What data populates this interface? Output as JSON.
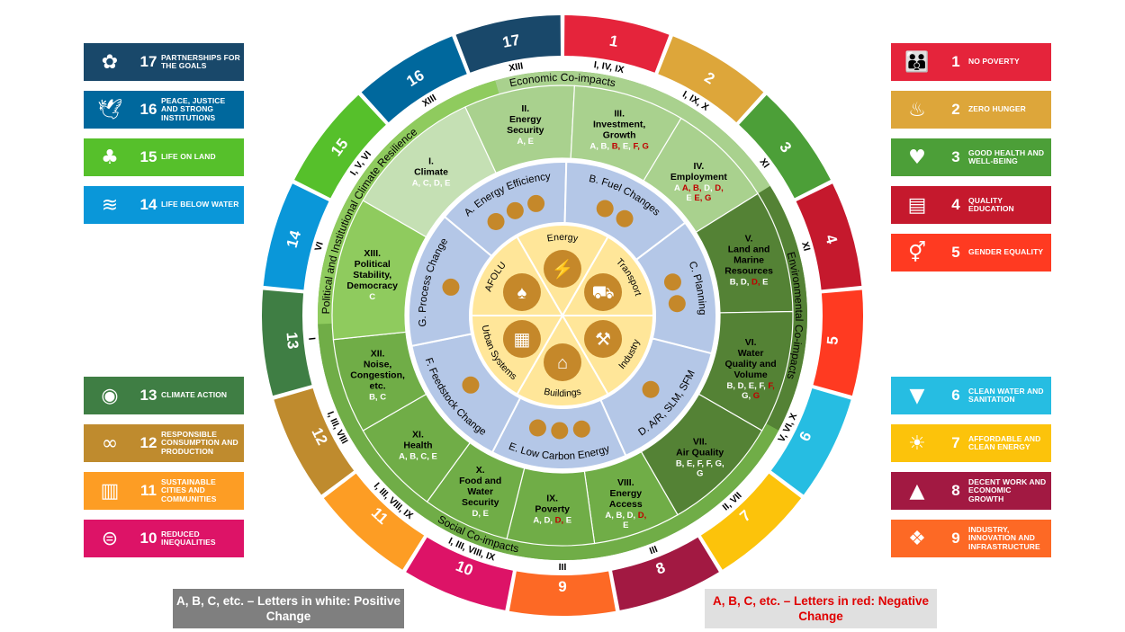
{
  "colors": {
    "sdg": {
      "1": "#E5243B",
      "2": "#DDA63A",
      "3": "#4C9F38",
      "4": "#C5192D",
      "5": "#FF3A21",
      "6": "#26BDE2",
      "7": "#FCC30B",
      "8": "#A21942",
      "9": "#FD6925",
      "10": "#DD1367",
      "11": "#FD9D24",
      "12": "#BF8B2E",
      "13": "#3F7E44",
      "14": "#0A97D9",
      "15": "#56C02B",
      "16": "#00689D",
      "17": "#19486A"
    },
    "economic": "#a9d18e",
    "environmental": "#548235",
    "social": "#70ad47",
    "political": "#8fcb5e",
    "sector_ring": "#b4c7e7",
    "core": "#ffe699",
    "icon_gold": "#c5882a",
    "negative": "#c00000"
  },
  "left_tiles": [
    {
      "number": "17",
      "label": "Partnerships for the goals",
      "icon": "rings-icon"
    },
    {
      "number": "16",
      "label": "Peace, justice and strong institutions",
      "icon": "dove-gavel-icon"
    },
    {
      "number": "15",
      "label": "Life on land",
      "icon": "tree-bird-icon"
    },
    {
      "number": "14",
      "label": "Life below water",
      "icon": "fish-wave-icon"
    },
    {
      "number": "13",
      "label": "Climate action",
      "icon": "eye-globe-icon"
    },
    {
      "number": "12",
      "label": "Responsible consumption and production",
      "icon": "infinity-icon"
    },
    {
      "number": "11",
      "label": "Sustainable cities and communities",
      "icon": "city-icon"
    },
    {
      "number": "10",
      "label": "Reduced inequalities",
      "icon": "equals-circle-icon"
    }
  ],
  "right_tiles": [
    {
      "number": "1",
      "label": "No poverty",
      "icon": "family-icon"
    },
    {
      "number": "2",
      "label": "Zero hunger",
      "icon": "bowl-icon"
    },
    {
      "number": "3",
      "label": "Good health and well-being",
      "icon": "heartbeat-icon"
    },
    {
      "number": "4",
      "label": "Quality education",
      "icon": "book-icon"
    },
    {
      "number": "5",
      "label": "Gender equality",
      "icon": "gender-icon"
    },
    {
      "number": "6",
      "label": "Clean water and sanitation",
      "icon": "water-drop-icon"
    },
    {
      "number": "7",
      "label": "Affordable and clean energy",
      "icon": "sun-power-icon"
    },
    {
      "number": "8",
      "label": "Decent work and economic growth",
      "icon": "growth-chart-icon"
    },
    {
      "number": "9",
      "label": "Industry, innovation and infrastructure",
      "icon": "cubes-icon"
    }
  ],
  "outer_ring": [
    {
      "sdg": "1",
      "roman": "I, IV, IX"
    },
    {
      "sdg": "2",
      "roman": "I, IX, X"
    },
    {
      "sdg": "3",
      "roman": "XI"
    },
    {
      "sdg": "4",
      "roman": "XI"
    },
    {
      "sdg": "5",
      "roman": ""
    },
    {
      "sdg": "6",
      "roman": "V, VI, X"
    },
    {
      "sdg": "7",
      "roman": "II, VII"
    },
    {
      "sdg": "8",
      "roman": "III"
    },
    {
      "sdg": "9",
      "roman": "III"
    },
    {
      "sdg": "10",
      "roman": "I, III, VIII, IX"
    },
    {
      "sdg": "11",
      "roman": "I, III, VIII, IX"
    },
    {
      "sdg": "12",
      "roman": "I, III, VIII"
    },
    {
      "sdg": "13",
      "roman": "I"
    },
    {
      "sdg": "14",
      "roman": "VI"
    },
    {
      "sdg": "15",
      "roman": "I, V, VI"
    },
    {
      "sdg": "16",
      "roman": "XIII"
    },
    {
      "sdg": "17",
      "roman": "XIII"
    }
  ],
  "band_labels": {
    "economic": "Economic Co-impacts",
    "environmental": "Environmental Co-impacts",
    "social": "Social Co-impacts",
    "political": "Political and Institutional Climate Resilience"
  },
  "co_impacts": [
    {
      "group": "economic",
      "roman": "II.",
      "title": [
        "Energy",
        "Security"
      ],
      "letters": [
        {
          "t": "A, E",
          "neg": false
        }
      ]
    },
    {
      "group": "economic",
      "roman": "III.",
      "title": [
        "Investment,",
        "Growth"
      ],
      "letters": [
        {
          "t": "A, B,",
          "neg": false
        },
        {
          "t": "B,",
          "neg": true
        },
        {
          "t": "E,",
          "neg": false
        },
        {
          "t": "F, G",
          "neg": true
        }
      ]
    },
    {
      "group": "economic",
      "roman": "IV.",
      "title": [
        "Employment"
      ],
      "letters": [
        {
          "t": "A",
          "neg": false
        },
        {
          "t": "A, B,",
          "neg": true
        },
        {
          "t": "D,",
          "neg": false
        },
        {
          "t": "D,",
          "neg": true
        },
        {
          "t": "|E",
          "neg": false
        },
        {
          "t": "E, G",
          "neg": true
        }
      ]
    },
    {
      "group": "environmental",
      "roman": "V.",
      "title": [
        "Land and",
        "Marine",
        "Resources"
      ],
      "letters": [
        {
          "t": "B, D,",
          "neg": false
        },
        {
          "t": "D,",
          "neg": true
        },
        {
          "t": "E",
          "neg": false
        }
      ]
    },
    {
      "group": "environmental",
      "roman": "VI.",
      "title": [
        "Water",
        "Quality and",
        "Volume"
      ],
      "letters": [
        {
          "t": "B, D, E, F,",
          "neg": false
        },
        {
          "t": "F,",
          "neg": true
        },
        {
          "t": "|G,",
          "neg": false
        },
        {
          "t": "G",
          "neg": true
        }
      ]
    },
    {
      "group": "environmental",
      "roman": "VII.",
      "title": [
        "Air Quality"
      ],
      "letters": [
        {
          "t": "B, E, F, F, G,",
          "neg": false
        },
        {
          "t": "|G",
          "neg": false
        }
      ]
    },
    {
      "group": "social",
      "roman": "VIII.",
      "title": [
        "Energy",
        "Access"
      ],
      "letters": [
        {
          "t": "A, B, D,",
          "neg": false
        },
        {
          "t": "D,",
          "neg": true
        },
        {
          "t": "|E",
          "neg": false
        }
      ]
    },
    {
      "group": "social",
      "roman": "IX.",
      "title": [
        "Poverty"
      ],
      "letters": [
        {
          "t": "A, D,",
          "neg": false
        },
        {
          "t": "D,",
          "neg": true
        },
        {
          "t": "E",
          "neg": false
        }
      ]
    },
    {
      "group": "social",
      "roman": "X.",
      "title": [
        "Food and",
        "Water",
        "Security"
      ],
      "letters": [
        {
          "t": "D, E",
          "neg": false
        }
      ]
    },
    {
      "group": "social",
      "roman": "XI.",
      "title": [
        "Health"
      ],
      "letters": [
        {
          "t": "A, B, C, E",
          "neg": false
        }
      ]
    },
    {
      "group": "social",
      "roman": "XII.",
      "title": [
        "Noise,",
        "Congestion,",
        "etc."
      ],
      "letters": [
        {
          "t": "B, C",
          "neg": false
        }
      ]
    },
    {
      "group": "political",
      "roman": "XIII.",
      "title": [
        "Political",
        "Stability,",
        "Democracy"
      ],
      "letters": [
        {
          "t": "C",
          "neg": false
        }
      ]
    },
    {
      "group": "political_light",
      "roman": "I.",
      "title": [
        "Climate"
      ],
      "letters": [
        {
          "t": "A, C, D, E",
          "neg": false
        }
      ]
    }
  ],
  "measures": [
    "A. Energy Efficiency",
    "B. Fuel Changes",
    "C. Planning",
    "D. A/R, SLM, SFM",
    "E. Low Carbon Energy",
    "F. Feedstock Change",
    "G. Process Change"
  ],
  "sectors": [
    {
      "label": "Energy",
      "icon": "lightning-icon"
    },
    {
      "label": "Transport",
      "icon": "truck-icon"
    },
    {
      "label": "Industry",
      "icon": "hammer-icon"
    },
    {
      "label": "Buildings",
      "icon": "house-icon"
    },
    {
      "label": "Urban Systems",
      "icon": "buildings-icon"
    },
    {
      "label": "AFOLU",
      "icon": "tree-icon"
    }
  ],
  "legend": {
    "positive": "A, B, C, etc. – Letters in white: Positive Change",
    "negative": "A, B, C, etc. – Letters in red: Negative Change"
  }
}
